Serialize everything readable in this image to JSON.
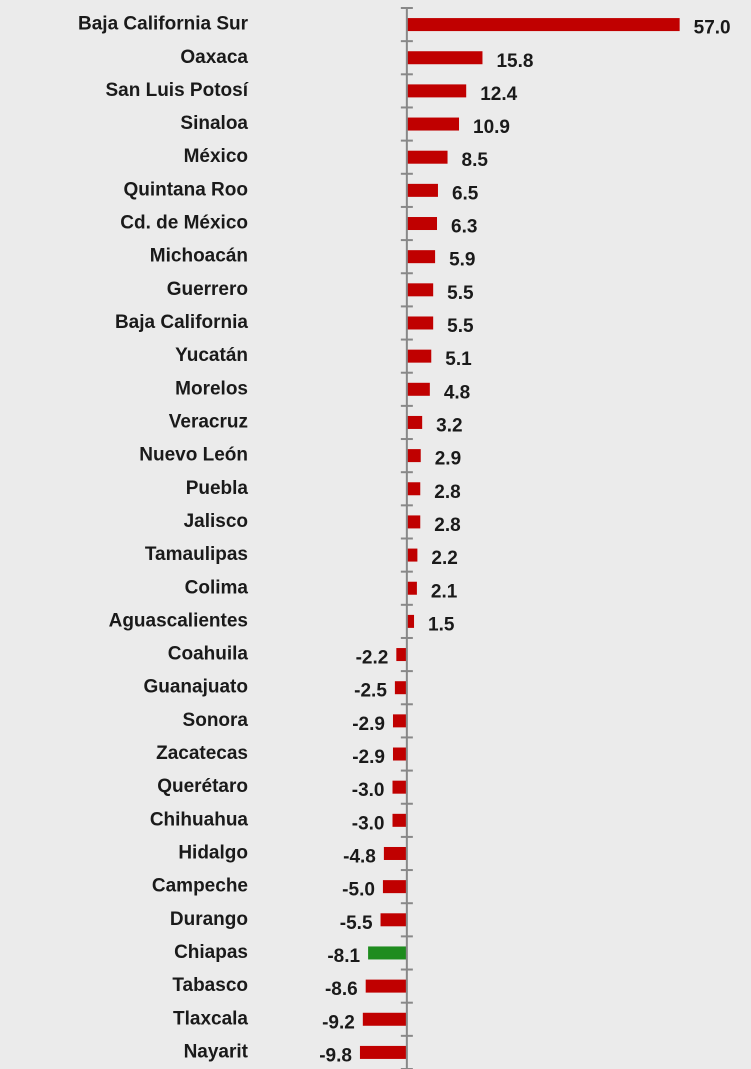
{
  "chart_data": {
    "type": "bar",
    "orientation": "horizontal",
    "categories": [
      "Baja California Sur",
      "Oaxaca",
      "San Luis Potosí",
      "Sinaloa",
      "México",
      "Quintana Roo",
      "Cd. de México",
      "Michoacán",
      "Guerrero",
      "Baja California",
      "Yucatán",
      "Morelos",
      "Veracruz",
      "Nuevo León",
      "Puebla",
      "Jalisco",
      "Tamaulipas",
      "Colima",
      "Aguascalientes",
      "Coahuila",
      "Guanajuato",
      "Sonora",
      "Zacatecas",
      "Querétaro",
      "Chihuahua",
      "Hidalgo",
      "Campeche",
      "Durango",
      "Chiapas",
      "Tabasco",
      "Tlaxcala",
      "Nayarit"
    ],
    "values": [
      57.0,
      15.8,
      12.4,
      10.9,
      8.5,
      6.5,
      6.3,
      5.9,
      5.5,
      5.5,
      5.1,
      4.8,
      3.2,
      2.9,
      2.8,
      2.8,
      2.2,
      2.1,
      1.5,
      -2.2,
      -2.5,
      -2.9,
      -2.9,
      -3.0,
      -3.0,
      -4.8,
      -5.0,
      -5.5,
      -8.1,
      -8.6,
      -9.2,
      -9.8
    ],
    "value_labels": [
      "57.0",
      "15.8",
      "12.4",
      "10.9",
      "8.5",
      "6.5",
      "6.3",
      "5.9",
      "5.5",
      "5.5",
      "5.1",
      "4.8",
      "3.2",
      "2.9",
      "2.8",
      "2.8",
      "2.2",
      "2.1",
      "1.5",
      "-2.2",
      "-2.5",
      "-2.9",
      "-2.9",
      "-3.0",
      "-3.0",
      "-4.8",
      "-5.0",
      "-5.5",
      "-8.1",
      "-8.6",
      "-9.2",
      "-9.8"
    ],
    "colors": [
      "#c00000",
      "#c00000",
      "#c00000",
      "#c00000",
      "#c00000",
      "#c00000",
      "#c00000",
      "#c00000",
      "#c00000",
      "#c00000",
      "#c00000",
      "#c00000",
      "#c00000",
      "#c00000",
      "#c00000",
      "#c00000",
      "#c00000",
      "#c00000",
      "#c00000",
      "#c00000",
      "#c00000",
      "#c00000",
      "#c00000",
      "#c00000",
      "#c00000",
      "#c00000",
      "#c00000",
      "#c00000",
      "#1e8c1e",
      "#c00000",
      "#c00000",
      "#c00000"
    ],
    "xlim": [
      -10,
      60
    ]
  }
}
